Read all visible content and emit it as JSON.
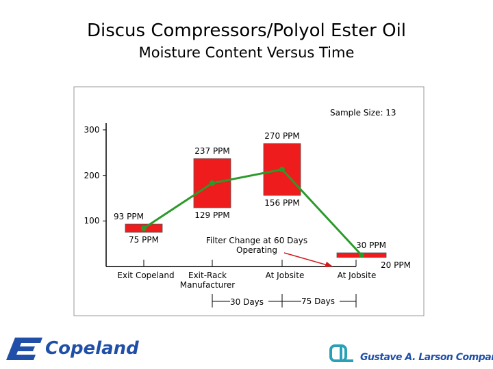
{
  "chart_data": {
    "type": "range-bar",
    "title": "Discus Compressors/Polyol Ester Oil",
    "subtitle": "Moisture Content Versus Time",
    "annotation": "Sample Size:  13",
    "categories": [
      "Exit Copeland",
      "Exit-Rack Manufacturer",
      "At Jobsite",
      "At Jobsite"
    ],
    "low": [
      75,
      129,
      156,
      20
    ],
    "high": [
      93,
      237,
      270,
      30
    ],
    "low_labels": [
      "75 PPM",
      "129 PPM",
      "156 PPM",
      "20 PPM"
    ],
    "high_labels": [
      "93 PPM",
      "237 PPM",
      "270 PPM",
      "30 PPM"
    ],
    "color": "#ee1c1c",
    "series": [
      {
        "values": [
          84,
          183,
          213,
          25
        ],
        "color": "#2a9a2a"
      }
    ],
    "ylim": [
      0,
      300
    ],
    "yticks": [
      100,
      200,
      300
    ],
    "note": "Filter Change at 60 Days Operating",
    "intervals": [
      "30 Days",
      "75 Days"
    ],
    "logos": [
      "Copeland",
      "Gustave A. Larson Company"
    ]
  }
}
